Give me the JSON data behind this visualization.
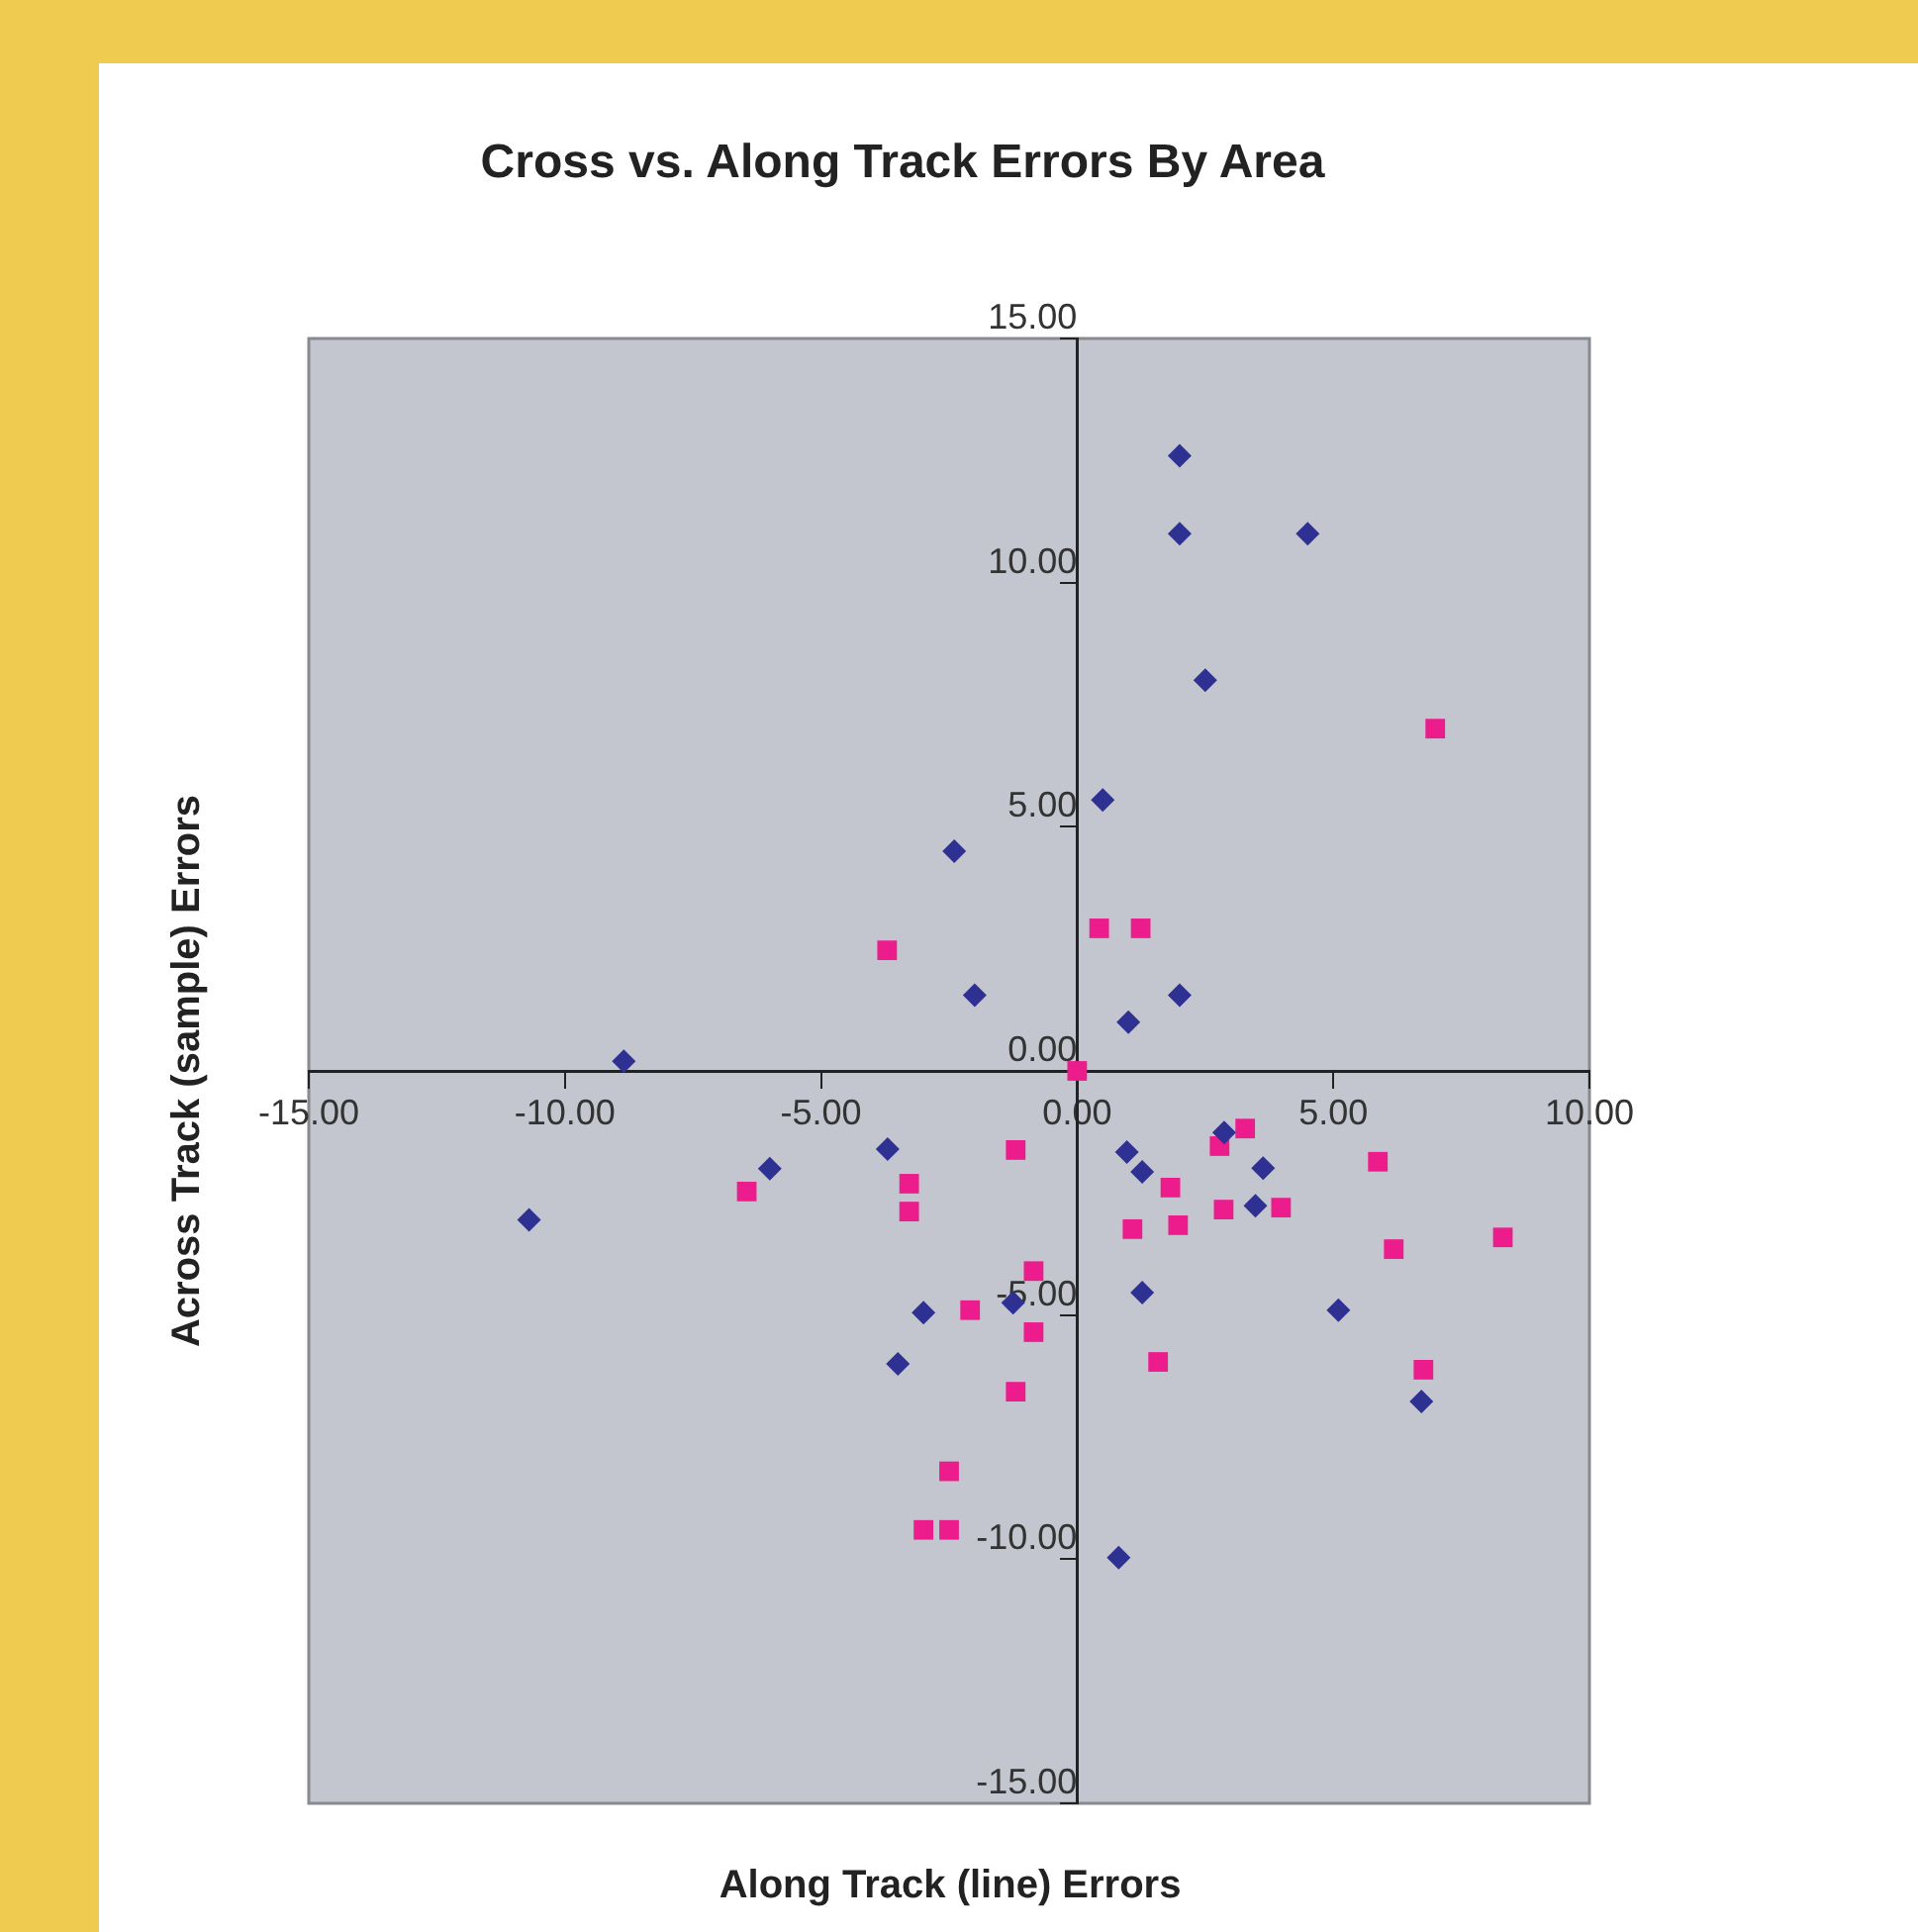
{
  "chart_data": {
    "type": "scatter",
    "title": "Cross vs. Along Track Errors By Area",
    "xlabel": "Along Track (line) Errors",
    "ylabel": "Across Track (sample) Errors",
    "xlim": [
      -15,
      10
    ],
    "ylim": [
      -15,
      15
    ],
    "xticks": [
      {
        "value": -15,
        "label": "-15.00"
      },
      {
        "value": -10,
        "label": "-10.00"
      },
      {
        "value": -5,
        "label": "-5.00"
      },
      {
        "value": 0,
        "label": "0.00"
      },
      {
        "value": 5,
        "label": "5.00"
      },
      {
        "value": 10,
        "label": "10.00"
      }
    ],
    "yticks": [
      {
        "value": -15,
        "label": "-15.00"
      },
      {
        "value": -10,
        "label": "-10.00"
      },
      {
        "value": -5,
        "label": "-5.00"
      },
      {
        "value": 0,
        "label": "0.00"
      },
      {
        "value": 5,
        "label": "5.00"
      },
      {
        "value": 10,
        "label": "10.00"
      },
      {
        "value": 15,
        "label": "15.00"
      }
    ],
    "grid": false,
    "legend": false,
    "series": [
      {
        "color": "#2e3192",
        "marker": "diamond",
        "x": [
          2.0,
          2.0,
          4.5,
          2.5,
          0.5,
          -2.4,
          -2.0,
          2.0,
          1.0,
          -8.85,
          -10.7,
          -6.0,
          -3.7,
          -3.0,
          -3.5,
          -1.25,
          0.97,
          1.27,
          2.87,
          3.63,
          3.48,
          1.27,
          5.1,
          6.72,
          0.81
        ],
        "values": [
          12.6,
          11.0,
          11.0,
          8.0,
          5.55,
          4.5,
          1.55,
          1.55,
          1.0,
          0.2,
          -3.05,
          -2.0,
          -1.6,
          -4.95,
          -6.0,
          -4.75,
          -1.66,
          -2.07,
          -1.26,
          -1.99,
          -2.76,
          -4.54,
          -4.9,
          -6.77,
          -9.97
        ]
      },
      {
        "color": "#ec1c8c",
        "marker": "square",
        "x": [
          -3.71,
          0.43,
          1.24,
          6.99,
          0.0,
          -6.45,
          -3.28,
          -3.28,
          -2.5,
          -3.0,
          -2.5,
          -1.2,
          -2.09,
          -0.85,
          -0.85,
          -1.2,
          2.78,
          3.28,
          1.82,
          1.08,
          1.97,
          2.86,
          3.98,
          5.87,
          6.18,
          8.31,
          1.58,
          6.76
        ],
        "values": [
          2.47,
          2.92,
          2.92,
          7.01,
          0.0,
          -2.47,
          -2.31,
          -2.88,
          -8.2,
          -9.4,
          -9.4,
          -1.62,
          -4.9,
          -4.1,
          -5.35,
          -6.57,
          -1.54,
          -1.18,
          -2.39,
          -3.24,
          -3.16,
          -2.84,
          -2.8,
          -1.86,
          -3.65,
          -3.41,
          -5.96,
          -6.12
        ]
      }
    ]
  }
}
